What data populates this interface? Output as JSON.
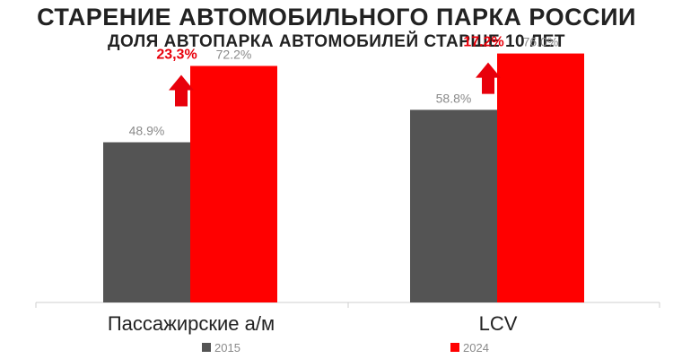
{
  "chart_data": {
    "type": "bar",
    "title": "СТАРЕНИЕ АВТОМОБИЛЬНОГО ПАРКА РОССИИ",
    "subtitle": "ДОЛЯ АВТОПАРКА АВТОМОБИЛЕЙ СТАРШЕ 10 ЛЕТ",
    "categories": [
      "Пассажирские а/м",
      "LCV"
    ],
    "series": [
      {
        "name": "2015",
        "values": [
          48.9,
          58.8
        ],
        "labels": [
          "48.9%",
          "58.8%"
        ],
        "color": "#545454"
      },
      {
        "name": "2024",
        "values": [
          72.2,
          76.0
        ],
        "labels": [
          "72.2%",
          "76.0%"
        ],
        "color": "#ff0000"
      }
    ],
    "growth_annotations": [
      "23,3%",
      "17.2%"
    ],
    "growth_color": "#e8000b",
    "ylim": [
      0,
      80
    ],
    "grid": false,
    "legend_position": "bottom"
  }
}
